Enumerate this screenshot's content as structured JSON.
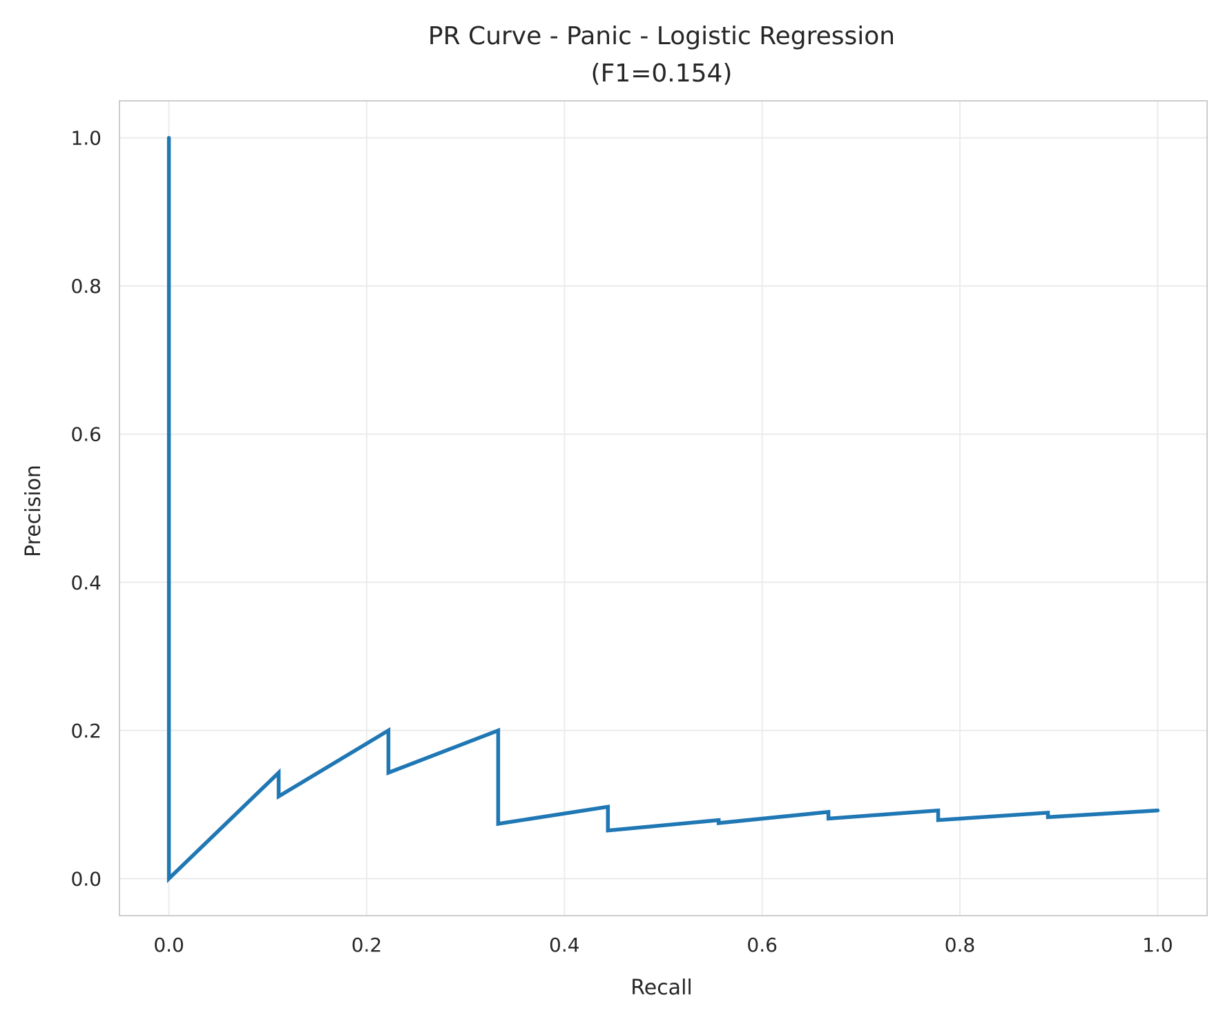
{
  "chart_data": {
    "type": "line",
    "title": "PR Curve - Panic - Logistic Regression",
    "subtitle": "(F1=0.154)",
    "xlabel": "Recall",
    "ylabel": "Precision",
    "xlim": [
      -0.05,
      1.05
    ],
    "ylim": [
      -0.05,
      1.05
    ],
    "xticks": [
      0.0,
      0.2,
      0.4,
      0.6,
      0.8,
      1.0
    ],
    "xtick_labels": [
      "0.0",
      "0.2",
      "0.4",
      "0.6",
      "0.8",
      "1.0"
    ],
    "yticks": [
      0.0,
      0.2,
      0.4,
      0.6,
      0.8,
      1.0
    ],
    "ytick_labels": [
      "0.0",
      "0.2",
      "0.4",
      "0.6",
      "0.8",
      "1.0"
    ],
    "grid": true,
    "legend": "none",
    "series": [
      {
        "color": "#1f77b4",
        "x": [
          0.0,
          0.0,
          0.111,
          0.111,
          0.222,
          0.222,
          0.333,
          0.333,
          0.444,
          0.444,
          0.556,
          0.556,
          0.667,
          0.667,
          0.778,
          0.778,
          0.889,
          0.889,
          1.0
        ],
        "y": [
          1.0,
          0.0,
          0.143,
          0.111,
          0.2,
          0.143,
          0.2,
          0.074,
          0.097,
          0.065,
          0.079,
          0.075,
          0.09,
          0.081,
          0.092,
          0.079,
          0.089,
          0.083,
          0.092
        ]
      }
    ]
  }
}
